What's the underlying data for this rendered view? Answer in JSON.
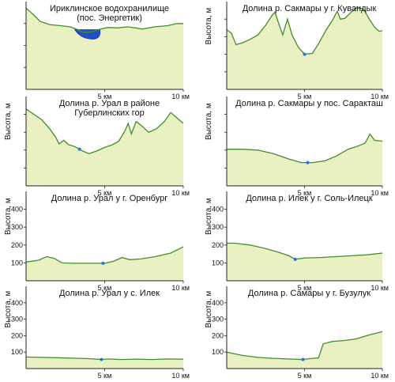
{
  "chart_data": [
    {
      "type": "area",
      "title": "Ириклинское водохранилище (пос. Энергетик)",
      "title_lines": [
        "Ириклинское водохранилище",
        "(пос. Энергетик)"
      ],
      "ylabel": "",
      "xlabel": "",
      "y_ticks": [],
      "x_ticks": [
        {
          "v": 5,
          "label": "5 км"
        },
        {
          "v": 10,
          "label": "10 км"
        }
      ],
      "xlim": [
        0,
        10
      ],
      "ylim": [
        0,
        400
      ],
      "profile": [
        [
          0,
          370
        ],
        [
          0.4,
          345
        ],
        [
          0.9,
          310
        ],
        [
          1.5,
          295
        ],
        [
          2.2,
          290
        ],
        [
          2.8,
          285
        ],
        [
          3.2,
          275
        ],
        [
          3.6,
          260
        ],
        [
          4.2,
          262
        ],
        [
          4.6,
          272
        ],
        [
          5.2,
          282
        ],
        [
          5.8,
          280
        ],
        [
          6.5,
          285
        ],
        [
          7.4,
          275
        ],
        [
          8.2,
          285
        ],
        [
          9.0,
          290
        ],
        [
          9.6,
          300
        ],
        [
          10,
          300
        ]
      ],
      "water": {
        "from": 3.1,
        "to": 4.7,
        "level": 272,
        "depth": 232
      }
    },
    {
      "type": "area",
      "title": "Долина р. Сакмары у г. Кувандык",
      "title_lines": [
        "Долина р. Сакмары у г. Кувандык"
      ],
      "ylabel": "Высота, м",
      "xlabel": "",
      "y_ticks": [],
      "x_ticks": [
        {
          "v": 5,
          "label": "5 км"
        },
        {
          "v": 10,
          "label": "10 км"
        }
      ],
      "xlim": [
        0,
        10
      ],
      "ylim": [
        0,
        500
      ],
      "profile": [
        [
          0,
          340
        ],
        [
          0.3,
          320
        ],
        [
          0.6,
          255
        ],
        [
          1.0,
          265
        ],
        [
          1.5,
          285
        ],
        [
          2.0,
          310
        ],
        [
          2.5,
          365
        ],
        [
          2.9,
          420
        ],
        [
          3.1,
          440
        ],
        [
          3.3,
          385
        ],
        [
          3.6,
          310
        ],
        [
          3.9,
          400
        ],
        [
          4.2,
          310
        ],
        [
          4.6,
          240
        ],
        [
          5.0,
          200
        ],
        [
          5.5,
          205
        ],
        [
          5.9,
          260
        ],
        [
          6.4,
          340
        ],
        [
          6.8,
          395
        ],
        [
          7.1,
          445
        ],
        [
          7.3,
          400
        ],
        [
          7.6,
          405
        ],
        [
          8.0,
          440
        ],
        [
          8.4,
          470
        ],
        [
          8.8,
          455
        ],
        [
          9.2,
          395
        ],
        [
          9.5,
          355
        ],
        [
          9.8,
          330
        ],
        [
          10,
          335
        ]
      ],
      "river": 5.0
    },
    {
      "type": "area",
      "title": "Долина р. Урал в районе Губерлинских гор",
      "title_lines": [
        "Долина р. Урал в районе",
        "Губерлинских гор"
      ],
      "ylabel": "Высота, м",
      "xlabel": "",
      "y_ticks": [],
      "x_ticks": [
        {
          "v": 5,
          "label": "5 км"
        },
        {
          "v": 10,
          "label": "10 км"
        }
      ],
      "xlim": [
        0,
        10
      ],
      "ylim": [
        0,
        500
      ],
      "profile": [
        [
          0,
          430
        ],
        [
          0.5,
          400
        ],
        [
          1.0,
          370
        ],
        [
          1.5,
          320
        ],
        [
          1.9,
          270
        ],
        [
          2.1,
          235
        ],
        [
          2.4,
          255
        ],
        [
          2.7,
          230
        ],
        [
          3.1,
          220
        ],
        [
          3.6,
          195
        ],
        [
          4.0,
          180
        ],
        [
          4.5,
          195
        ],
        [
          5.0,
          215
        ],
        [
          5.5,
          230
        ],
        [
          5.9,
          250
        ],
        [
          6.3,
          310
        ],
        [
          6.5,
          350
        ],
        [
          6.7,
          290
        ],
        [
          7.0,
          360
        ],
        [
          7.3,
          340
        ],
        [
          7.8,
          300
        ],
        [
          8.3,
          320
        ],
        [
          8.8,
          360
        ],
        [
          9.2,
          410
        ],
        [
          9.6,
          380
        ],
        [
          10,
          350
        ]
      ],
      "river": 3.4
    },
    {
      "type": "area",
      "title": "Долина р. Сакмары у пос. Саракташ",
      "title_lines": [
        "Долина р. Сакмары у пос. Саракташ"
      ],
      "ylabel": "Высота, м",
      "xlabel": "",
      "y_ticks": [],
      "x_ticks": [
        {
          "v": 5,
          "label": "5 км"
        },
        {
          "v": 10,
          "label": "10 км"
        }
      ],
      "xlim": [
        0,
        10
      ],
      "ylim": [
        0,
        500
      ],
      "profile": [
        [
          0,
          205
        ],
        [
          1.0,
          205
        ],
        [
          2.0,
          200
        ],
        [
          3.0,
          180
        ],
        [
          4.0,
          150
        ],
        [
          4.8,
          130
        ],
        [
          5.5,
          130
        ],
        [
          6.3,
          140
        ],
        [
          7.0,
          165
        ],
        [
          7.8,
          205
        ],
        [
          8.5,
          225
        ],
        [
          8.9,
          240
        ],
        [
          9.2,
          290
        ],
        [
          9.5,
          255
        ],
        [
          10,
          250
        ]
      ],
      "river": 5.2
    },
    {
      "type": "area",
      "title": "Долина р. Урал у г. Оренбург",
      "title_lines": [
        "Долина р. Урал у г. Оренбург"
      ],
      "ylabel": "Высота, м",
      "xlabel": "",
      "y_ticks": [
        100,
        200,
        300,
        400
      ],
      "x_ticks": [
        {
          "v": 5,
          "label": "5 км"
        },
        {
          "v": 10,
          "label": "10 км"
        }
      ],
      "xlim": [
        0,
        10
      ],
      "ylim": [
        0,
        500
      ],
      "profile": [
        [
          0,
          105
        ],
        [
          0.8,
          115
        ],
        [
          1.3,
          135
        ],
        [
          1.8,
          125
        ],
        [
          2.3,
          100
        ],
        [
          3.0,
          98
        ],
        [
          4.0,
          98
        ],
        [
          5.0,
          98
        ],
        [
          5.6,
          110
        ],
        [
          6.1,
          130
        ],
        [
          6.6,
          118
        ],
        [
          7.3,
          122
        ],
        [
          8.2,
          135
        ],
        [
          9.2,
          155
        ],
        [
          10,
          190
        ]
      ],
      "river": 4.9
    },
    {
      "type": "area",
      "title": "Долина р. Илек у г. Соль-Илецк",
      "title_lines": [
        "Долина р. Илек у  г. Соль-Илецк"
      ],
      "ylabel": "Высота, м",
      "xlabel": "",
      "y_ticks": [
        100,
        200,
        300,
        400
      ],
      "x_ticks": [
        {
          "v": 5,
          "label": "5 км"
        },
        {
          "v": 10,
          "label": "10 км"
        }
      ],
      "xlim": [
        0,
        10
      ],
      "ylim": [
        0,
        500
      ],
      "profile": [
        [
          0,
          210
        ],
        [
          0.5,
          210
        ],
        [
          1.5,
          200
        ],
        [
          2.5,
          180
        ],
        [
          3.3,
          160
        ],
        [
          4.0,
          140
        ],
        [
          4.4,
          120
        ],
        [
          5.0,
          128
        ],
        [
          6.0,
          130
        ],
        [
          7.0,
          135
        ],
        [
          8.0,
          140
        ],
        [
          9.0,
          145
        ],
        [
          10,
          155
        ]
      ],
      "river": 4.4
    },
    {
      "type": "area",
      "title": "Долина р. Урал у с. Илек",
      "title_lines": [
        "Долина р. Урал у с. Илек"
      ],
      "ylabel": "Высота, м",
      "xlabel": "",
      "y_ticks": [
        100,
        200,
        300,
        400
      ],
      "x_ticks": [
        {
          "v": 5,
          "label": "5 км"
        },
        {
          "v": 10,
          "label": "10 км"
        }
      ],
      "xlim": [
        0,
        10
      ],
      "ylim": [
        0,
        500
      ],
      "profile": [
        [
          0,
          70
        ],
        [
          1.0,
          68
        ],
        [
          2.0,
          66
        ],
        [
          3.0,
          63
        ],
        [
          4.0,
          60
        ],
        [
          4.8,
          55
        ],
        [
          5.3,
          58
        ],
        [
          6.0,
          55
        ],
        [
          7.0,
          57
        ],
        [
          8.0,
          55
        ],
        [
          9.0,
          58
        ],
        [
          10,
          57
        ]
      ],
      "river": 4.8
    },
    {
      "type": "area",
      "title": "Долина р. Самары у г. Бузулук",
      "title_lines": [
        "Долина р. Самары у г. Бузулук"
      ],
      "ylabel": "Высота, м",
      "xlabel": "",
      "y_ticks": [
        100,
        200,
        300,
        400
      ],
      "x_ticks": [
        {
          "v": 5,
          "label": "5 км"
        },
        {
          "v": 10,
          "label": "10 км"
        }
      ],
      "xlim": [
        0,
        10
      ],
      "ylim": [
        0,
        500
      ],
      "profile": [
        [
          0,
          100
        ],
        [
          1.0,
          80
        ],
        [
          2.0,
          68
        ],
        [
          3.0,
          62
        ],
        [
          4.0,
          58
        ],
        [
          4.9,
          55
        ],
        [
          5.3,
          60
        ],
        [
          5.9,
          65
        ],
        [
          6.2,
          150
        ],
        [
          6.8,
          165
        ],
        [
          7.5,
          170
        ],
        [
          8.3,
          180
        ],
        [
          9.0,
          200
        ],
        [
          10,
          225
        ]
      ],
      "river": 4.9
    }
  ]
}
